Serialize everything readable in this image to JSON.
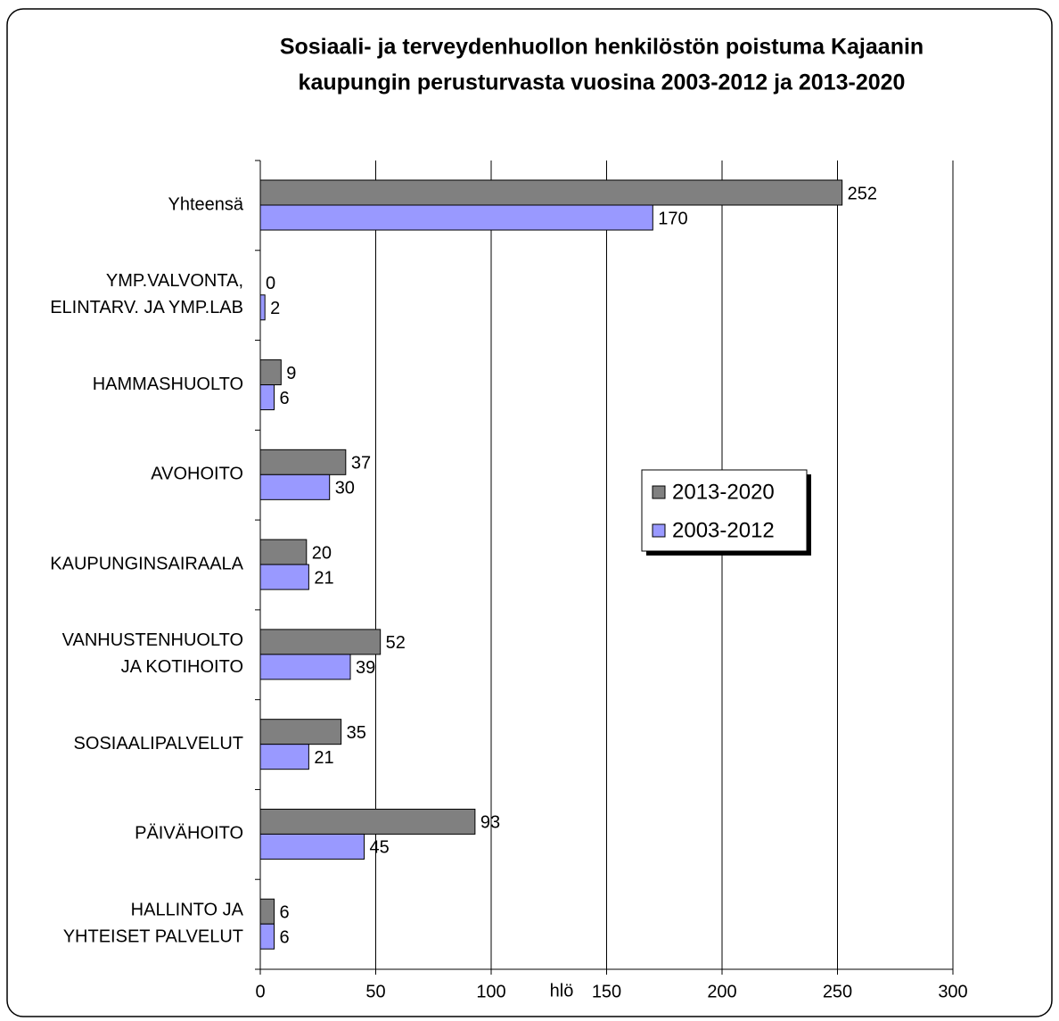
{
  "chart_data": {
    "type": "bar",
    "orientation": "horizontal",
    "title": [
      "Sosiaali- ja terveydenhuollon henkilöstön poistuma Kajaanin",
      "kaupungin perusturvasta vuosina 2003-2012 ja 2013-2020"
    ],
    "x_label": "hlö",
    "categories": [
      [
        "Yhteensä"
      ],
      [
        "YMP.VALVONTA,",
        "ELINTARV. JA YMP.LAB"
      ],
      [
        "HAMMASHUOLTO"
      ],
      [
        "AVOHOITO"
      ],
      [
        "KAUPUNGINSAIRAALA"
      ],
      [
        "VANHUSTENHUOLTO",
        "JA KOTIHOITO"
      ],
      [
        "SOSIAALIPALVELUT"
      ],
      [
        "PÄIVÄHOITO"
      ],
      [
        "HALLINTO JA",
        "YHTEISET PALVELUT"
      ]
    ],
    "series": [
      {
        "name": "2013-2020",
        "color": "#808080",
        "values": [
          252,
          0,
          9,
          37,
          20,
          52,
          35,
          93,
          6
        ]
      },
      {
        "name": "2003-2012",
        "color": "#9999ff",
        "values": [
          170,
          2,
          6,
          30,
          21,
          39,
          21,
          45,
          6
        ]
      }
    ],
    "xlim": [
      0,
      300
    ],
    "xticks": [
      0,
      50,
      100,
      150,
      200,
      250,
      300
    ],
    "grid": true,
    "legend": "right"
  }
}
